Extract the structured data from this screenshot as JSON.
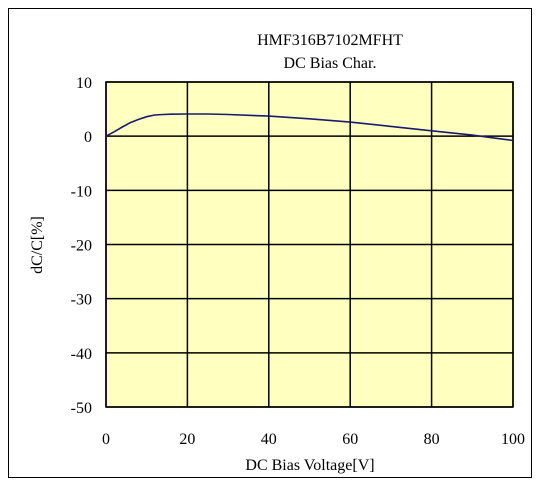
{
  "chart_data": {
    "type": "line",
    "title": [
      "HMF316B7102MFHT",
      "DC Bias Char."
    ],
    "xlabel": "DC Bias Voltage[V]",
    "ylabel": "dC/C[%]",
    "xlim": [
      0,
      100
    ],
    "ylim": [
      -50,
      10
    ],
    "x_ticks": [
      0,
      20,
      40,
      60,
      80,
      100
    ],
    "y_ticks": [
      10,
      0,
      -10,
      -20,
      -30,
      -40,
      -50
    ],
    "grid": true,
    "plot_background": "#ffffc0",
    "line_color": "#1a1a6e",
    "series": [
      {
        "x": [
          0,
          2,
          4,
          6,
          8,
          10,
          12,
          14,
          16,
          20,
          25,
          30,
          40,
          50,
          60,
          70,
          80,
          90,
          95,
          100
        ],
        "y": [
          0,
          0.8,
          1.7,
          2.5,
          3.1,
          3.6,
          3.9,
          4.0,
          4.05,
          4.1,
          4.1,
          4.0,
          3.7,
          3.2,
          2.6,
          1.8,
          1.0,
          0.2,
          -0.3,
          -0.8
        ]
      }
    ]
  }
}
